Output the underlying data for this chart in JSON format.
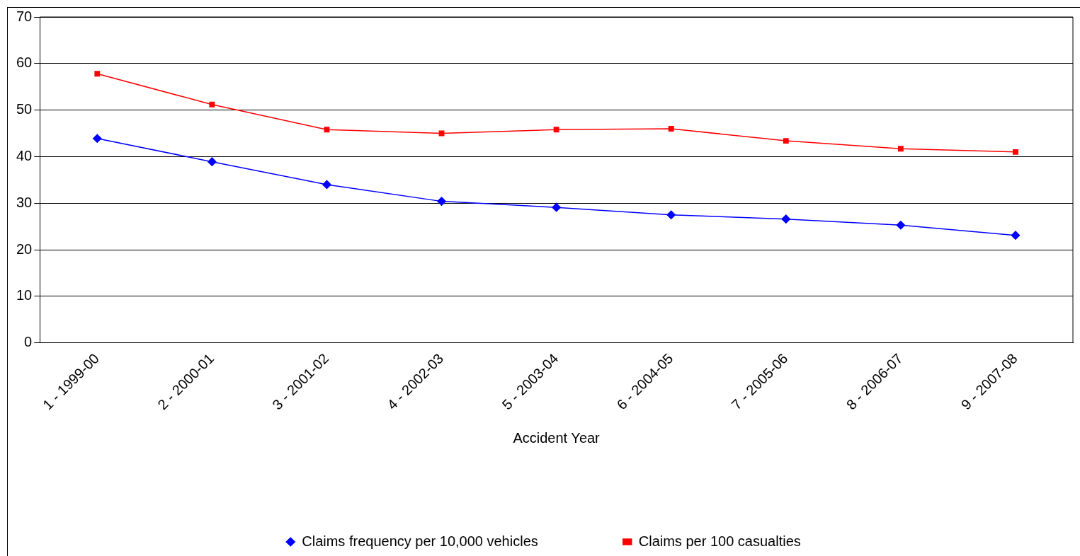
{
  "chart_data": {
    "type": "line",
    "xlabel": "Accident Year",
    "categories": [
      "1 - 1999-00",
      "2 - 2000-01",
      "3 - 2001-02",
      "4 - 2002-03",
      "5 - 2003-04",
      "6 - 2004-05",
      "7 - 2005-06",
      "8 - 2006-07",
      "9 - 2007-08"
    ],
    "series": [
      {
        "name": "Claims frequency per 10,000 vehicles",
        "color": "#0000ff",
        "marker": "diamond",
        "values": [
          43.9,
          38.9,
          34.0,
          30.4,
          29.1,
          27.5,
          26.6,
          25.3,
          23.1
        ]
      },
      {
        "name": "Claims per 100 casualties",
        "color": "#ff0000",
        "marker": "square",
        "values": [
          57.8,
          51.2,
          45.8,
          45.0,
          45.8,
          46.0,
          43.4,
          41.7,
          41.0
        ]
      }
    ],
    "ylim": [
      0,
      70
    ],
    "yticks": [
      0,
      10,
      20,
      30,
      40,
      50,
      60,
      70
    ],
    "grid": "y",
    "legend": "bottom"
  }
}
